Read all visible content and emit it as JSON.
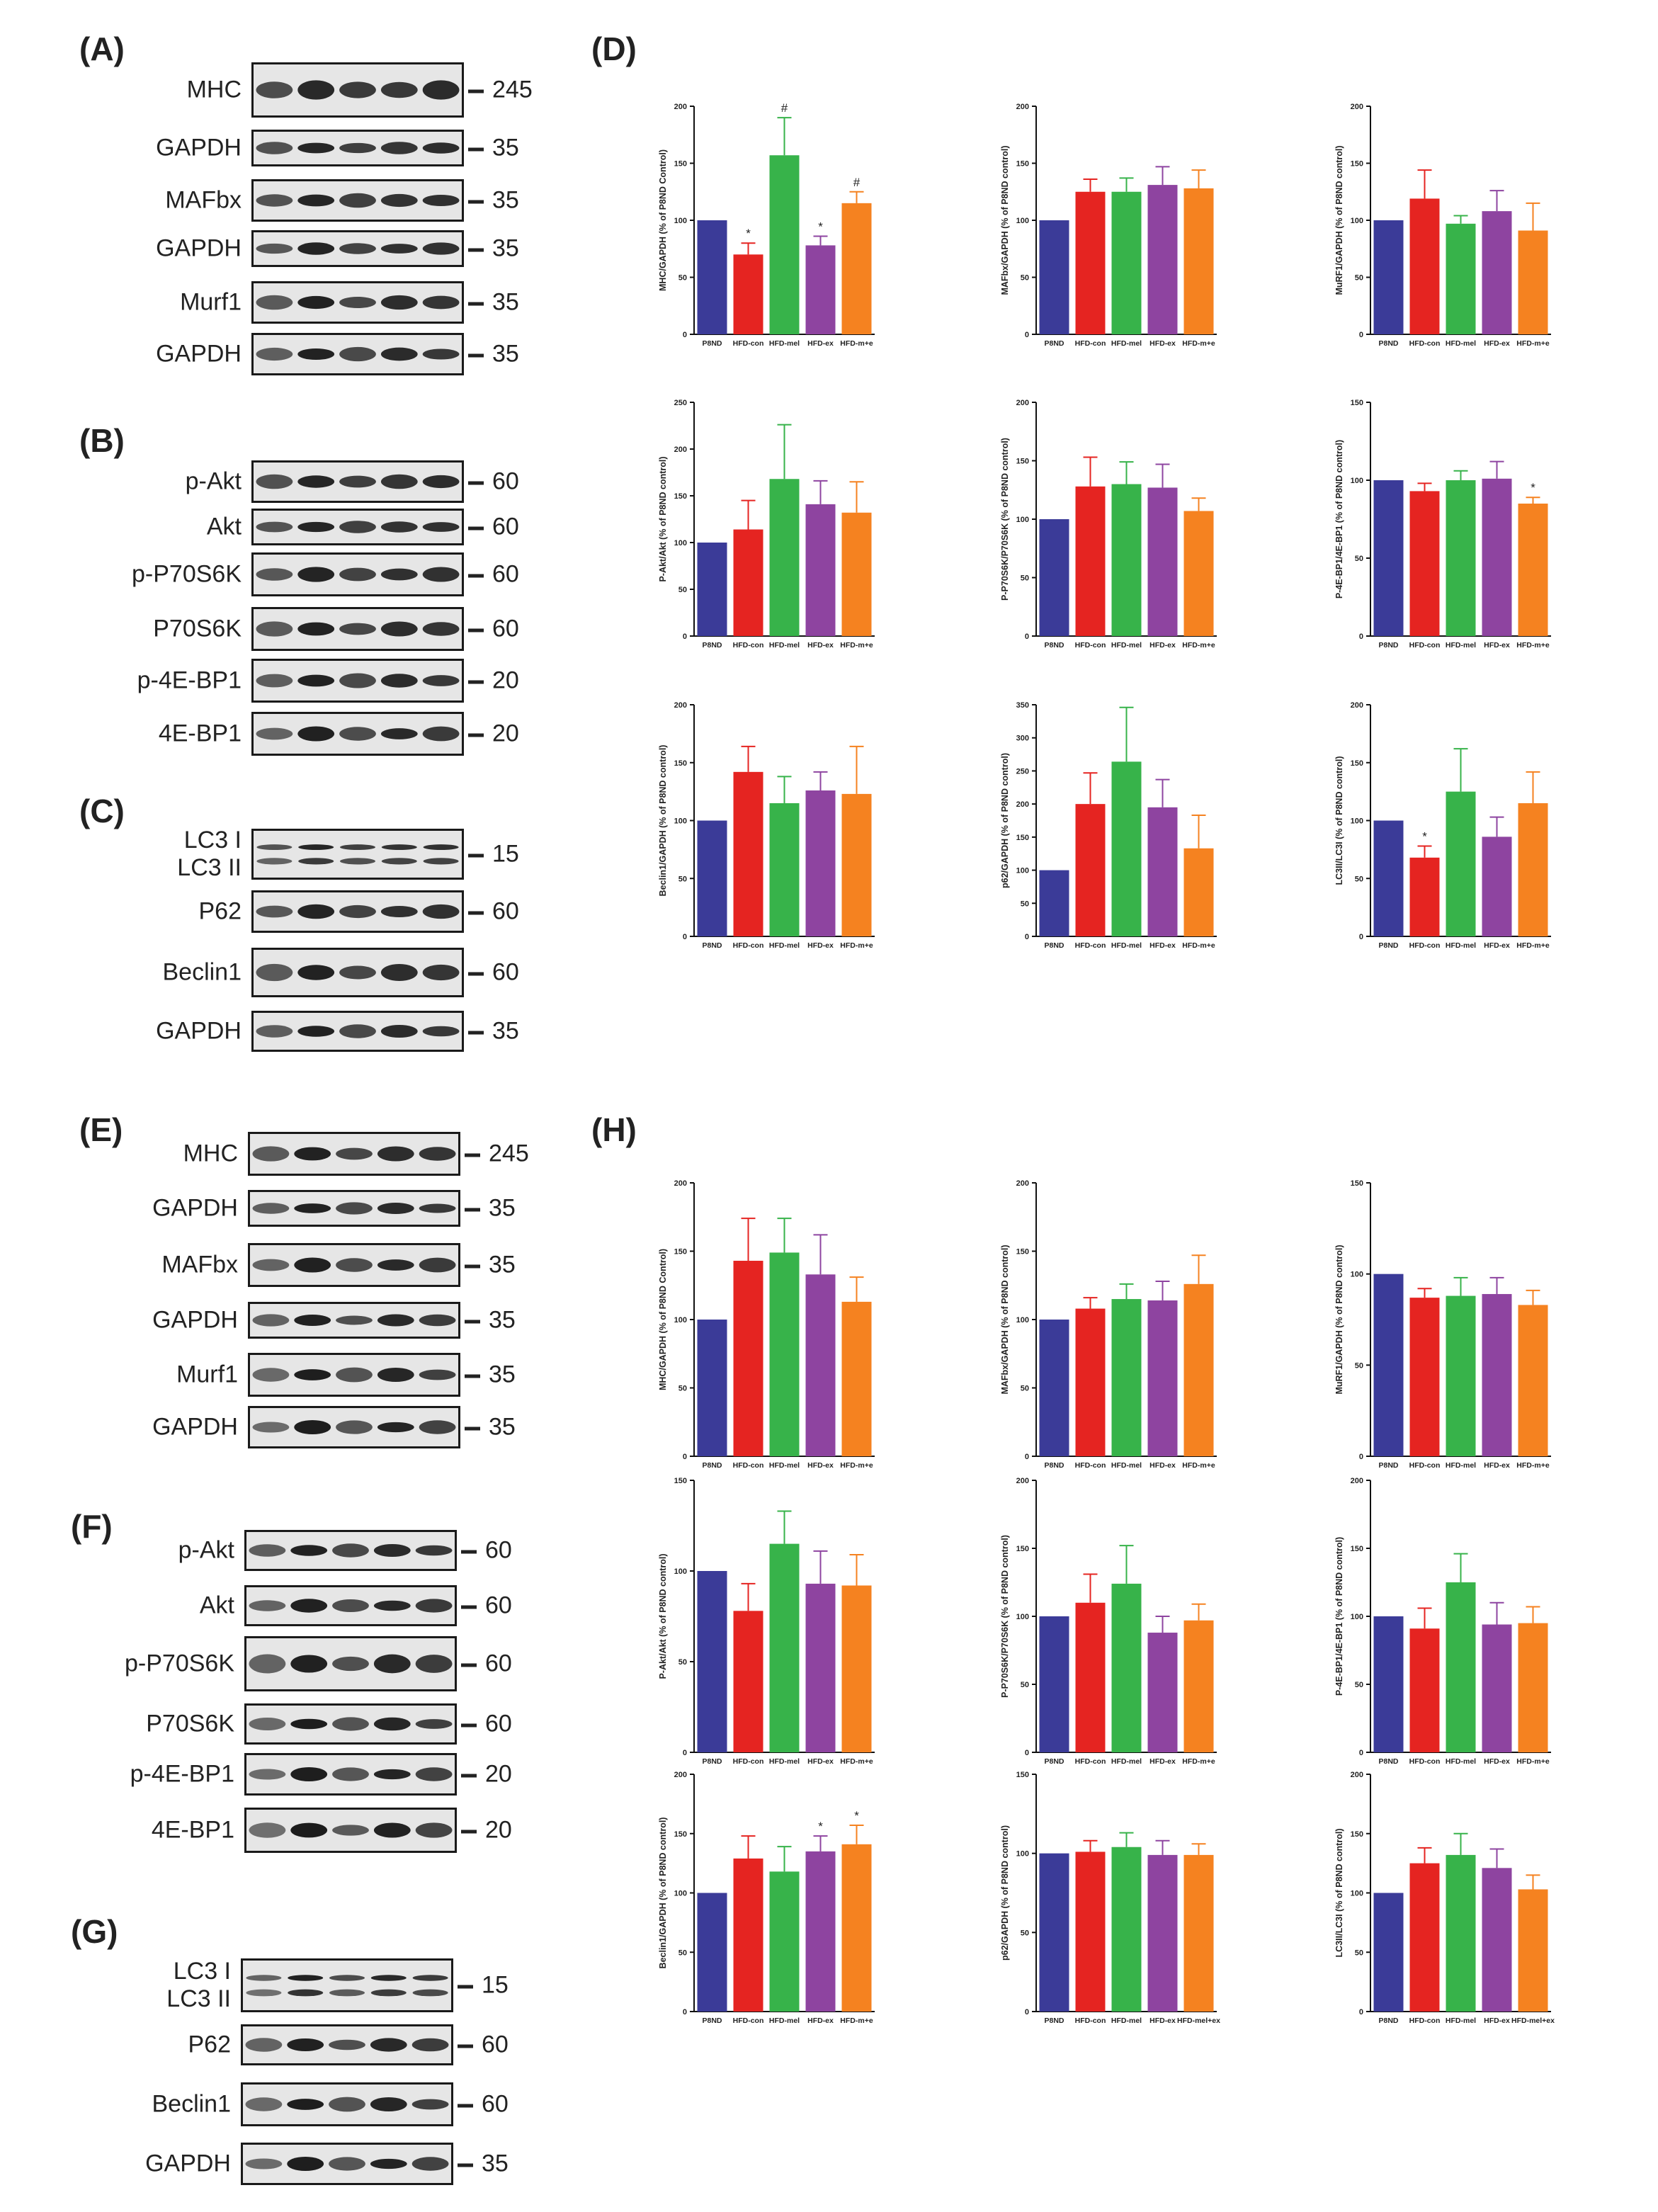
{
  "colors": [
    "#3b3b98",
    "#e52421",
    "#37b34a",
    "#8e44a0",
    "#f58220"
  ],
  "panel_letters": {
    "A": "(A)",
    "B": "(B)",
    "C": "(C)",
    "D": "(D)",
    "E": "(E)",
    "F": "(F)",
    "G": "(G)",
    "H": "(H)"
  },
  "blots": {
    "A": [
      {
        "label": "MHC",
        "marker": "245"
      },
      {
        "label": "GAPDH",
        "marker": "35"
      },
      {
        "label": "MAFbx",
        "marker": "35"
      },
      {
        "label": "GAPDH",
        "marker": "35"
      },
      {
        "label": "Murf1",
        "marker": "35"
      },
      {
        "label": "GAPDH",
        "marker": "35"
      }
    ],
    "B": [
      {
        "label": "p-Akt",
        "marker": "60"
      },
      {
        "label": "Akt",
        "marker": "60"
      },
      {
        "label": "p-P70S6K",
        "marker": "60"
      },
      {
        "label": "P70S6K",
        "marker": "60"
      },
      {
        "label": "p-4E-BP1",
        "marker": "20"
      },
      {
        "label": "4E-BP1",
        "marker": "20"
      }
    ],
    "C": [
      {
        "label": "LC3 I",
        "label2": "LC3 II",
        "marker": "15"
      },
      {
        "label": "P62",
        "marker": "60"
      },
      {
        "label": "Beclin1",
        "marker": "60"
      },
      {
        "label": "GAPDH",
        "marker": "35"
      }
    ],
    "E": [
      {
        "label": "MHC",
        "marker": "245"
      },
      {
        "label": "GAPDH",
        "marker": "35"
      },
      {
        "label": "MAFbx",
        "marker": "35"
      },
      {
        "label": "GAPDH",
        "marker": "35"
      },
      {
        "label": "Murf1",
        "marker": "35"
      },
      {
        "label": "GAPDH",
        "marker": "35"
      }
    ],
    "F": [
      {
        "label": "p-Akt",
        "marker": "60"
      },
      {
        "label": "Akt",
        "marker": "60"
      },
      {
        "label": "p-P70S6K",
        "marker": "60"
      },
      {
        "label": "P70S6K",
        "marker": "60"
      },
      {
        "label": "p-4E-BP1",
        "marker": "20"
      },
      {
        "label": "4E-BP1",
        "marker": "20"
      }
    ],
    "G": [
      {
        "label": "LC3 I",
        "label2": "LC3 II",
        "marker": "15"
      },
      {
        "label": "P62",
        "marker": "60"
      },
      {
        "label": "Beclin1",
        "marker": "60"
      },
      {
        "label": "GAPDH",
        "marker": "35"
      }
    ]
  },
  "chart_data": [
    {
      "panel": "D",
      "type": "bar",
      "ylabel": "MHC/GAPDH (% of P8ND Control)",
      "ylim": [
        0,
        200
      ],
      "ticks": [
        0,
        50,
        100,
        150,
        200
      ],
      "categories": [
        "P8ND",
        "HFD-con",
        "HFD-mel",
        "HFD-ex",
        "HFD-m+e"
      ],
      "values": [
        100,
        70,
        157,
        78,
        115
      ],
      "errors": [
        0,
        10,
        33,
        8,
        10
      ],
      "annotations": [
        "",
        "*",
        "#",
        "*",
        "#"
      ]
    },
    {
      "panel": "D",
      "type": "bar",
      "ylabel": "MAFbx/GAPDH (% of P8ND control)",
      "ylim": [
        0,
        200
      ],
      "ticks": [
        0,
        50,
        100,
        150,
        200
      ],
      "categories": [
        "P8ND",
        "HFD-con",
        "HFD-mel",
        "HFD-ex",
        "HFD-m+e"
      ],
      "values": [
        100,
        125,
        125,
        131,
        128
      ],
      "errors": [
        0,
        11,
        12,
        16,
        16
      ],
      "annotations": [
        "",
        "",
        "",
        "",
        ""
      ]
    },
    {
      "panel": "D",
      "type": "bar",
      "ylabel": "MuRF1/GAPDH (% of P8ND control)",
      "ylim": [
        0,
        200
      ],
      "ticks": [
        0,
        50,
        100,
        150,
        200
      ],
      "categories": [
        "P8ND",
        "HFD-con",
        "HFD-mel",
        "HFD-ex",
        "HFD-m+e"
      ],
      "values": [
        100,
        119,
        97,
        108,
        91
      ],
      "errors": [
        0,
        25,
        7,
        18,
        24
      ],
      "annotations": [
        "",
        "",
        "",
        "",
        ""
      ]
    },
    {
      "panel": "D",
      "type": "bar",
      "ylabel": "P-Akt/Akt (% of P8ND control)",
      "ylim": [
        0,
        250
      ],
      "ticks": [
        0,
        50,
        100,
        150,
        200,
        250
      ],
      "categories": [
        "P8ND",
        "HFD-con",
        "HFD-mel",
        "HFD-ex",
        "HFD-m+e"
      ],
      "values": [
        100,
        114,
        168,
        141,
        132
      ],
      "errors": [
        0,
        31,
        58,
        25,
        33
      ],
      "annotations": [
        "",
        "",
        "",
        "",
        ""
      ]
    },
    {
      "panel": "D",
      "type": "bar",
      "ylabel": "P-P70S6K/P70S6K (% of P8ND control)",
      "ylim": [
        0,
        200
      ],
      "ticks": [
        0,
        50,
        100,
        150,
        200
      ],
      "categories": [
        "P8ND",
        "HFD-con",
        "HFD-mel",
        "HFD-ex",
        "HFD-m+e"
      ],
      "values": [
        100,
        128,
        130,
        127,
        107
      ],
      "errors": [
        0,
        25,
        19,
        20,
        11
      ],
      "annotations": [
        "",
        "",
        "",
        "",
        ""
      ]
    },
    {
      "panel": "D",
      "type": "bar",
      "ylabel": "P-4E-BP1/4E-BP1 (% of P8ND control)",
      "ylim": [
        0,
        150
      ],
      "ticks": [
        0,
        50,
        100,
        150
      ],
      "categories": [
        "P8ND",
        "HFD-con",
        "HFD-mel",
        "HFD-ex",
        "HFD-m+e"
      ],
      "values": [
        100,
        93,
        100,
        101,
        85
      ],
      "errors": [
        0,
        5,
        6,
        11,
        4
      ],
      "annotations": [
        "",
        "",
        "",
        "",
        "*"
      ]
    },
    {
      "panel": "D",
      "type": "bar",
      "ylabel": "Beclin1/GAPDH (% of P8ND control)",
      "ylim": [
        0,
        200
      ],
      "ticks": [
        0,
        50,
        100,
        150,
        200
      ],
      "categories": [
        "P8ND",
        "HFD-con",
        "HFD-mel",
        "HFD-ex",
        "HFD-m+e"
      ],
      "values": [
        100,
        142,
        115,
        126,
        123
      ],
      "errors": [
        0,
        22,
        23,
        16,
        41
      ],
      "annotations": [
        "",
        "",
        "",
        "",
        ""
      ]
    },
    {
      "panel": "D",
      "type": "bar",
      "ylabel": "p62/GAPDH (% of P8ND control)",
      "ylim": [
        0,
        350
      ],
      "ticks": [
        0,
        50,
        100,
        150,
        200,
        250,
        300,
        350
      ],
      "categories": [
        "P8ND",
        "HFD-con",
        "HFD-mel",
        "HFD-ex",
        "HFD-m+e"
      ],
      "values": [
        100,
        200,
        264,
        195,
        133
      ],
      "errors": [
        0,
        47,
        82,
        42,
        50
      ],
      "annotations": [
        "",
        "",
        "",
        "",
        ""
      ]
    },
    {
      "panel": "D",
      "type": "bar",
      "ylabel": "LC3II/LC3I (% of P8ND control)",
      "ylim": [
        0,
        200
      ],
      "ticks": [
        0,
        50,
        100,
        150,
        200
      ],
      "categories": [
        "P8ND",
        "HFD-con",
        "HFD-mel",
        "HFD-ex",
        "HFD-m+e"
      ],
      "values": [
        100,
        68,
        125,
        86,
        115
      ],
      "errors": [
        0,
        10,
        37,
        17,
        27
      ],
      "annotations": [
        "",
        "*",
        "",
        "",
        ""
      ]
    },
    {
      "panel": "H",
      "type": "bar",
      "ylabel": "MHC/GAPDH (% of P8ND Control)",
      "ylim": [
        0,
        200
      ],
      "ticks": [
        0,
        50,
        100,
        150,
        200
      ],
      "categories": [
        "P8ND",
        "HFD-con",
        "HFD-mel",
        "HFD-ex",
        "HFD-m+e"
      ],
      "values": [
        100,
        143,
        149,
        133,
        113
      ],
      "errors": [
        0,
        31,
        25,
        29,
        18
      ],
      "annotations": [
        "",
        "",
        "",
        "",
        ""
      ]
    },
    {
      "panel": "H",
      "type": "bar",
      "ylabel": "MAFbx/GAPDH (% of P8ND control)",
      "ylim": [
        0,
        200
      ],
      "ticks": [
        0,
        50,
        100,
        150,
        200
      ],
      "categories": [
        "P8ND",
        "HFD-con",
        "HFD-mel",
        "HFD-ex",
        "HFD-m+e"
      ],
      "values": [
        100,
        108,
        115,
        114,
        126
      ],
      "errors": [
        0,
        8,
        11,
        14,
        21
      ],
      "annotations": [
        "",
        "",
        "",
        "",
        ""
      ]
    },
    {
      "panel": "H",
      "type": "bar",
      "ylabel": "MuRF1/GAPDH (% of P8ND control)",
      "ylim": [
        0,
        150
      ],
      "ticks": [
        0,
        50,
        100,
        150
      ],
      "categories": [
        "P8ND",
        "HFD-con",
        "HFD-mel",
        "HFD-ex",
        "HFD-m+e"
      ],
      "values": [
        100,
        87,
        88,
        89,
        83
      ],
      "errors": [
        0,
        5,
        10,
        9,
        8
      ],
      "annotations": [
        "",
        "",
        "",
        "",
        ""
      ]
    },
    {
      "panel": "H",
      "type": "bar",
      "ylabel": "P-Akt/Akt (% of P8ND control)",
      "ylim": [
        0,
        150
      ],
      "ticks": [
        0,
        50,
        100,
        150
      ],
      "categories": [
        "P8ND",
        "HFD-con",
        "HFD-mel",
        "HFD-ex",
        "HFD-m+e"
      ],
      "values": [
        100,
        78,
        115,
        93,
        92
      ],
      "errors": [
        0,
        15,
        18,
        18,
        17
      ],
      "annotations": [
        "",
        "",
        "",
        "",
        ""
      ]
    },
    {
      "panel": "H",
      "type": "bar",
      "ylabel": "P-P70S6K/P70S6K (% of P8ND control)",
      "ylim": [
        0,
        200
      ],
      "ticks": [
        0,
        50,
        100,
        150,
        200
      ],
      "categories": [
        "P8ND",
        "HFD-con",
        "HFD-mel",
        "HFD-ex",
        "HFD-m+e"
      ],
      "values": [
        100,
        110,
        124,
        88,
        97
      ],
      "errors": [
        0,
        21,
        28,
        12,
        12
      ],
      "annotations": [
        "",
        "",
        "",
        "",
        ""
      ]
    },
    {
      "panel": "H",
      "type": "bar",
      "ylabel": "P-4E-BP1/4E-BP1 (% of P8ND control)",
      "ylim": [
        0,
        200
      ],
      "ticks": [
        0,
        50,
        100,
        150,
        200
      ],
      "categories": [
        "P8ND",
        "HFD-con",
        "HFD-mel",
        "HFD-ex",
        "HFD-m+e"
      ],
      "values": [
        100,
        91,
        125,
        94,
        95
      ],
      "errors": [
        0,
        15,
        21,
        16,
        12
      ],
      "annotations": [
        "",
        "",
        "",
        "",
        ""
      ]
    },
    {
      "panel": "H",
      "type": "bar",
      "ylabel": "Beclin1/GAPDH (% of P8ND control)",
      "ylim": [
        0,
        200
      ],
      "ticks": [
        0,
        50,
        100,
        150,
        200
      ],
      "categories": [
        "P8ND",
        "HFD-con",
        "HFD-mel",
        "HFD-ex",
        "HFD-m+e"
      ],
      "values": [
        100,
        129,
        118,
        135,
        141
      ],
      "errors": [
        0,
        19,
        21,
        13,
        16
      ],
      "annotations": [
        "",
        "",
        "",
        "*",
        "*"
      ]
    },
    {
      "panel": "H",
      "type": "bar",
      "ylabel": "p62/GAPDH (% of P8ND control)",
      "ylim": [
        0,
        150
      ],
      "ticks": [
        0,
        50,
        100,
        150
      ],
      "categories": [
        "P8ND",
        "HFD-con",
        "HFD-mel",
        "HFD-ex",
        "HFD-mel+ex"
      ],
      "values": [
        100,
        101,
        104,
        99,
        99
      ],
      "errors": [
        0,
        7,
        9,
        9,
        7
      ],
      "annotations": [
        "",
        "",
        "",
        "",
        ""
      ]
    },
    {
      "panel": "H",
      "type": "bar",
      "ylabel": "LC3II/LC3I (% of P8ND control)",
      "ylim": [
        0,
        200
      ],
      "ticks": [
        0,
        50,
        100,
        150,
        200
      ],
      "categories": [
        "P8ND",
        "HFD-con",
        "HFD-mel",
        "HFD-ex",
        "HFD-mel+ex"
      ],
      "values": [
        100,
        125,
        132,
        121,
        103
      ],
      "errors": [
        0,
        13,
        18,
        16,
        12
      ],
      "annotations": [
        "",
        "",
        "",
        "",
        ""
      ]
    }
  ]
}
